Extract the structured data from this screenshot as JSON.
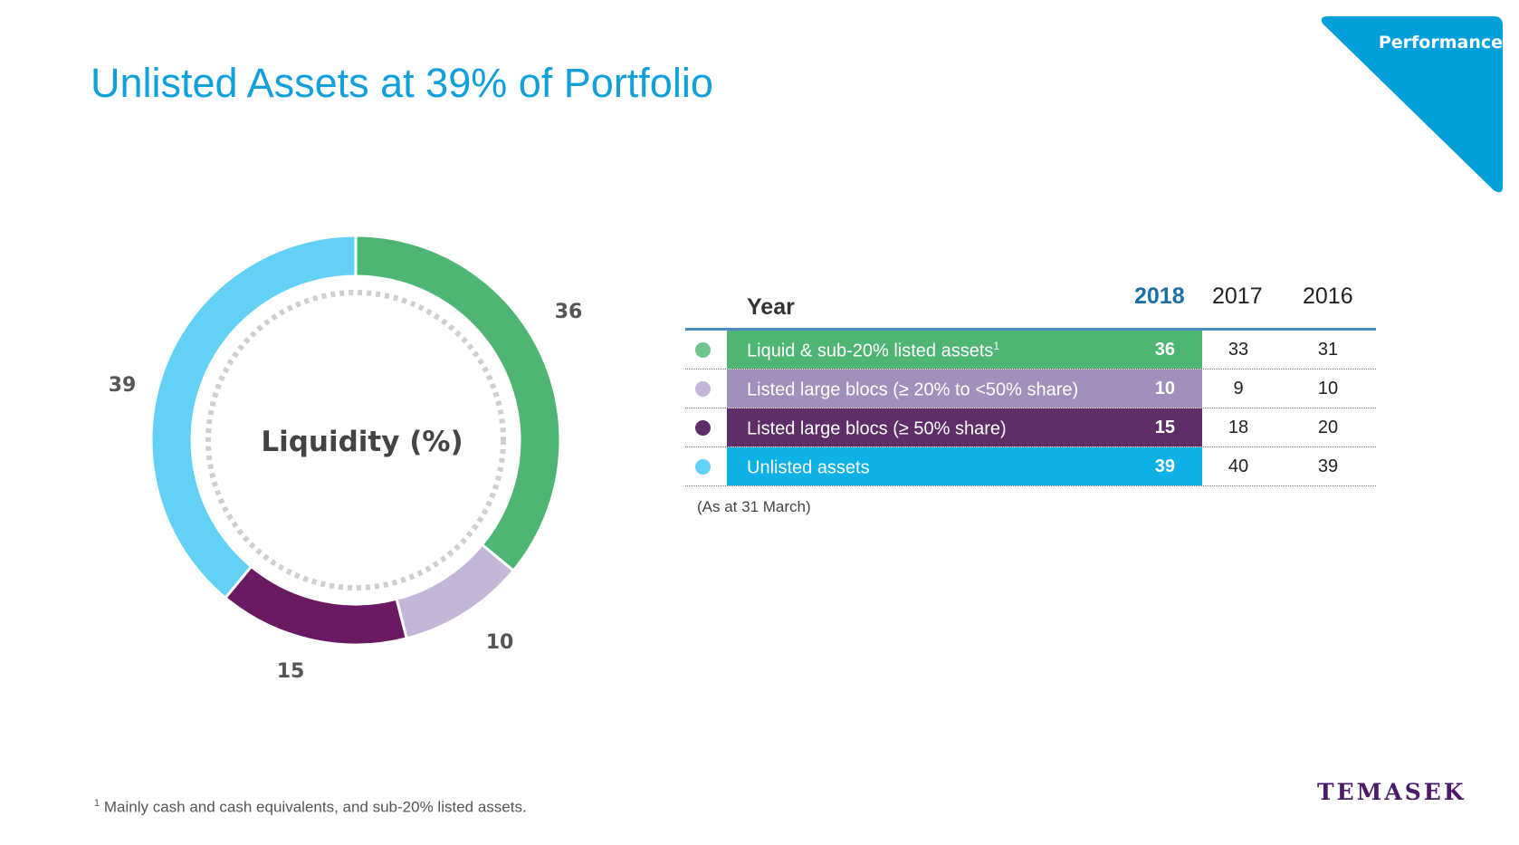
{
  "title": "Unlisted Assets at 39% of Portfolio",
  "section_tab": "Performance",
  "colors": {
    "accent": "#0fa0dc",
    "liquid": "#4fb575",
    "listed_20_50": "#c3b6d6",
    "listed_50": "#6a1a62",
    "unlisted": "#63d1f5"
  },
  "chart_data": {
    "type": "pie",
    "center_label": "Liquidity (%)",
    "categories": [
      "Liquid & sub-20% listed assets",
      "Listed large blocs (≥ 20% to <50% share)",
      "Listed large blocs (≥ 50% share)",
      "Unlisted assets"
    ],
    "values": [
      36,
      10,
      15,
      39
    ],
    "data_labels": [
      "36",
      "10",
      "15",
      "39"
    ],
    "colors": [
      "#4fb575",
      "#c3b6d6",
      "#6a1a62",
      "#63d1f5"
    ]
  },
  "table": {
    "header": "Year",
    "years": [
      "2018",
      "2017",
      "2016"
    ],
    "rows": [
      {
        "label": "Liquid & sub-20% listed assets",
        "sup": "1",
        "v2018": "36",
        "v2017": "33",
        "v2016": "31",
        "bg": "#4fb575",
        "dot": "#6fc48f"
      },
      {
        "label": "Listed large blocs (≥ 20% to <50% share)",
        "sup": "",
        "v2018": "10",
        "v2017": "9",
        "v2016": "10",
        "bg": "#a38fbb",
        "dot": "#c3b6d6"
      },
      {
        "label": "Listed large blocs (≥ 50% share)",
        "sup": "",
        "v2018": "15",
        "v2017": "18",
        "v2016": "20",
        "bg": "#5f2e69",
        "dot": "#5f2e69"
      },
      {
        "label": "Unlisted assets",
        "sup": "",
        "v2018": "39",
        "v2017": "40",
        "v2016": "39",
        "bg": "#0db1e5",
        "dot": "#63d1f5"
      }
    ],
    "note": "(As at 31 March)"
  },
  "footnote": {
    "mark": "1",
    "text": "Mainly cash and cash equivalents, and sub-20% listed assets."
  },
  "logo": "TEMASEK"
}
